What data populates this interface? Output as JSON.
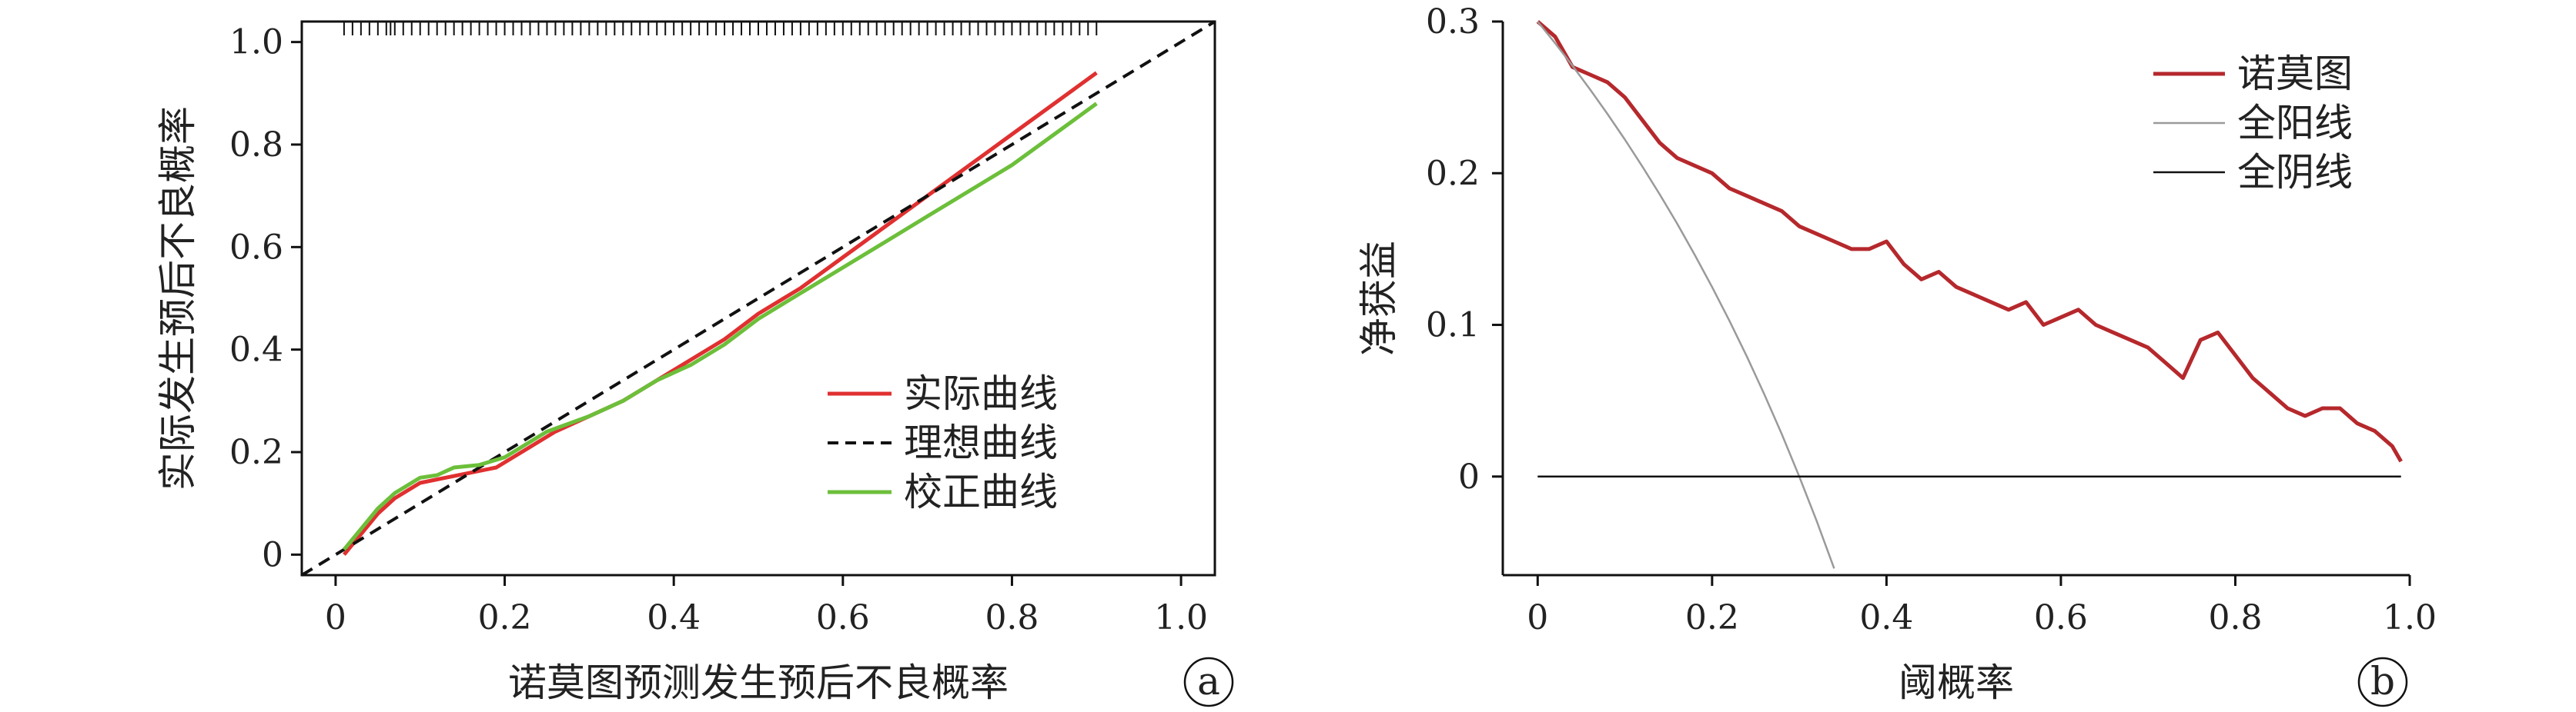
{
  "chart_data": [
    {
      "type": "line",
      "xlabel": "诺莫图预测发生预后不良概率",
      "ylabel": "实际发生预后不良概率",
      "xlim": [
        -0.04,
        1.04
      ],
      "ylim": [
        -0.04,
        1.04
      ],
      "x_ticks": [
        0,
        0.2,
        0.4,
        0.6,
        0.8,
        1.0
      ],
      "x_tick_labels": [
        "0",
        "0.2",
        "0.4",
        "0.6",
        "0.8",
        "1.0"
      ],
      "y_ticks": [
        0,
        0.2,
        0.4,
        0.6,
        0.8,
        1.0
      ],
      "y_tick_labels": [
        "0",
        "0.2",
        "0.4",
        "0.6",
        "0.8",
        "1.0"
      ],
      "legend_position": "lower-right",
      "panel_label": "a",
      "rug_x": [
        0.01,
        0.02,
        0.03,
        0.04,
        0.05,
        0.06,
        0.065,
        0.07,
        0.08,
        0.09,
        0.1,
        0.11,
        0.12,
        0.13,
        0.14,
        0.15,
        0.16,
        0.17,
        0.18,
        0.19,
        0.2,
        0.21,
        0.22,
        0.23,
        0.24,
        0.25,
        0.26,
        0.27,
        0.28,
        0.29,
        0.3,
        0.31,
        0.32,
        0.33,
        0.34,
        0.35,
        0.36,
        0.37,
        0.38,
        0.39,
        0.4,
        0.41,
        0.42,
        0.43,
        0.44,
        0.45,
        0.46,
        0.47,
        0.48,
        0.49,
        0.5,
        0.51,
        0.52,
        0.53,
        0.54,
        0.55,
        0.56,
        0.57,
        0.58,
        0.59,
        0.6,
        0.61,
        0.62,
        0.63,
        0.64,
        0.65,
        0.66,
        0.67,
        0.68,
        0.69,
        0.7,
        0.71,
        0.72,
        0.73,
        0.74,
        0.75,
        0.76,
        0.77,
        0.78,
        0.79,
        0.8,
        0.81,
        0.82,
        0.83,
        0.84,
        0.85,
        0.86,
        0.87,
        0.88,
        0.89,
        0.9
      ],
      "series": [
        {
          "name": "实际曲线",
          "color": "#e03030",
          "style": "solid",
          "x": [
            0.01,
            0.03,
            0.05,
            0.07,
            0.1,
            0.13,
            0.16,
            0.19,
            0.22,
            0.26,
            0.3,
            0.34,
            0.38,
            0.42,
            0.46,
            0.5,
            0.55,
            0.6,
            0.65,
            0.7,
            0.75,
            0.8,
            0.85,
            0.9
          ],
          "y": [
            0.0,
            0.04,
            0.08,
            0.11,
            0.14,
            0.15,
            0.16,
            0.17,
            0.2,
            0.24,
            0.27,
            0.3,
            0.34,
            0.38,
            0.42,
            0.47,
            0.52,
            0.58,
            0.64,
            0.7,
            0.76,
            0.82,
            0.88,
            0.94
          ]
        },
        {
          "name": "理想曲线",
          "color": "#111111",
          "style": "dashed",
          "x": [
            -0.04,
            1.04
          ],
          "y": [
            -0.04,
            1.04
          ]
        },
        {
          "name": "校正曲线",
          "color": "#6cbf3a",
          "style": "solid",
          "x": [
            0.01,
            0.03,
            0.05,
            0.07,
            0.1,
            0.12,
            0.14,
            0.17,
            0.2,
            0.25,
            0.3,
            0.34,
            0.38,
            0.42,
            0.46,
            0.5,
            0.55,
            0.6,
            0.65,
            0.7,
            0.75,
            0.8,
            0.85,
            0.9
          ],
          "y": [
            0.01,
            0.05,
            0.09,
            0.12,
            0.15,
            0.155,
            0.17,
            0.175,
            0.19,
            0.24,
            0.27,
            0.3,
            0.34,
            0.37,
            0.41,
            0.46,
            0.51,
            0.56,
            0.61,
            0.66,
            0.71,
            0.76,
            0.82,
            0.88
          ]
        }
      ]
    },
    {
      "type": "line",
      "xlabel": "阈概率",
      "ylabel": "净获益",
      "xlim": [
        -0.04,
        1.0
      ],
      "ylim": [
        -0.065,
        0.3
      ],
      "x_ticks": [
        0,
        0.2,
        0.4,
        0.6,
        0.8,
        1.0
      ],
      "x_tick_labels": [
        "0",
        "0.2",
        "0.4",
        "0.6",
        "0.8",
        "1.0"
      ],
      "y_ticks": [
        0,
        0.1,
        0.2,
        0.3
      ],
      "y_tick_labels": [
        "0",
        "0.1",
        "0.2",
        "0.3"
      ],
      "legend_position": "top-right",
      "panel_label": "b",
      "series": [
        {
          "name": "诺莫图",
          "color": "#b5282c",
          "style": "solid",
          "width": 5,
          "x": [
            0,
            0.02,
            0.04,
            0.06,
            0.08,
            0.1,
            0.12,
            0.14,
            0.16,
            0.18,
            0.2,
            0.22,
            0.24,
            0.26,
            0.28,
            0.3,
            0.32,
            0.34,
            0.36,
            0.38,
            0.4,
            0.42,
            0.44,
            0.46,
            0.48,
            0.5,
            0.52,
            0.54,
            0.56,
            0.58,
            0.6,
            0.62,
            0.64,
            0.66,
            0.68,
            0.7,
            0.72,
            0.74,
            0.76,
            0.78,
            0.8,
            0.82,
            0.84,
            0.86,
            0.88,
            0.9,
            0.92,
            0.94,
            0.96,
            0.98,
            0.99
          ],
          "y": [
            0.3,
            0.29,
            0.27,
            0.265,
            0.26,
            0.25,
            0.235,
            0.22,
            0.21,
            0.205,
            0.2,
            0.19,
            0.185,
            0.18,
            0.175,
            0.165,
            0.16,
            0.155,
            0.15,
            0.15,
            0.155,
            0.14,
            0.13,
            0.135,
            0.125,
            0.12,
            0.115,
            0.11,
            0.115,
            0.1,
            0.105,
            0.11,
            0.1,
            0.095,
            0.09,
            0.085,
            0.075,
            0.065,
            0.09,
            0.095,
            0.08,
            0.065,
            0.055,
            0.045,
            0.04,
            0.045,
            0.045,
            0.035,
            0.03,
            0.02,
            0.01
          ]
        },
        {
          "name": "全阳线",
          "color": "#9a9a9a",
          "style": "solid",
          "width": 2.5,
          "x": [
            0,
            0.02,
            0.04,
            0.06,
            0.08,
            0.1,
            0.12,
            0.14,
            0.16,
            0.18,
            0.2,
            0.22,
            0.24,
            0.26,
            0.28,
            0.3,
            0.32,
            0.34
          ],
          "y": [
            0.3,
            0.2857,
            0.2708,
            0.2553,
            0.2391,
            0.2222,
            0.2045,
            0.186,
            0.1667,
            0.1463,
            0.125,
            0.1026,
            0.0789,
            0.0541,
            0.0278,
            0.0,
            -0.0294,
            -0.0606
          ]
        },
        {
          "name": "全阴线",
          "color": "#111111",
          "style": "solid",
          "width": 2.5,
          "x": [
            0,
            0.99
          ],
          "y": [
            0,
            0
          ]
        }
      ]
    }
  ]
}
